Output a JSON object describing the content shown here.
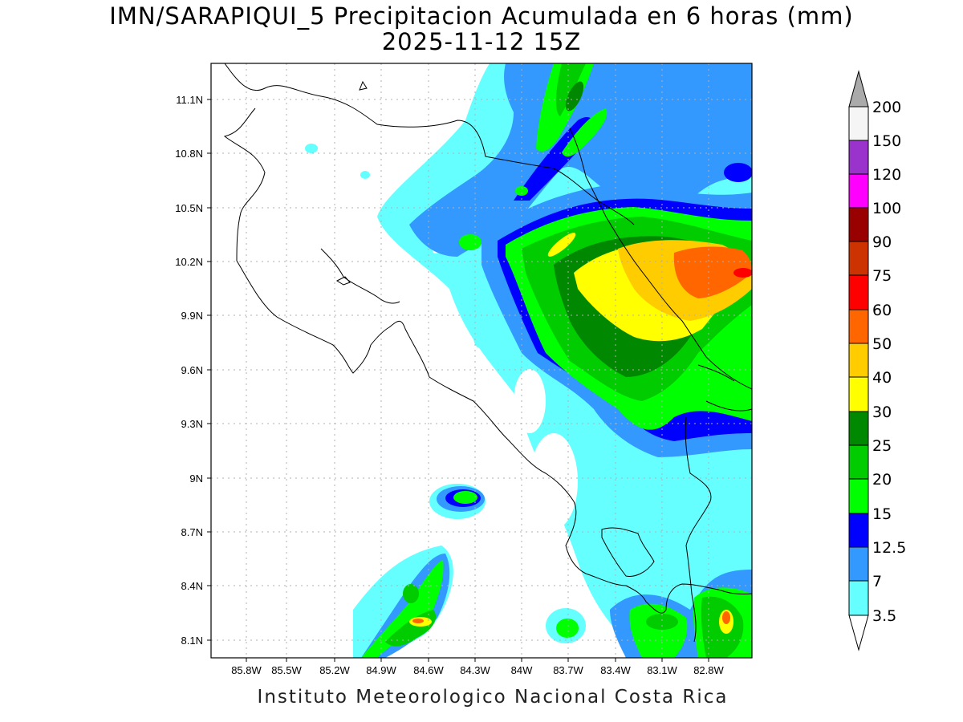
{
  "title": {
    "line1": "IMN/SARAPIQUI_5 Precipitacion Acumulada en 6 horas (mm)",
    "line2": "2025-11-12 15Z"
  },
  "credit": "Instituto Meteorologico Nacional Costa Rica",
  "map": {
    "lat_labels": [
      "11.1N",
      "10.8N",
      "10.5N",
      "10.2N",
      "9.9N",
      "9.6N",
      "9.3N",
      "9N",
      "8.7N",
      "8.4N",
      "8.1N"
    ],
    "lon_labels": [
      "85.8W",
      "85.5W",
      "85.2W",
      "84.9W",
      "84.6W",
      "84.3W",
      "84W",
      "83.7W",
      "83.4W",
      "83.1W",
      "82.8W"
    ],
    "lon_range": [
      -86.0,
      -82.55
    ],
    "lat_range": [
      8.0,
      11.3
    ],
    "grid": true,
    "fill_colors": {
      "c1": "#66ffff",
      "c2": "#3399ff",
      "c3": "#0000ff",
      "c4": "#00ff00",
      "c5": "#00cc00",
      "c6": "#008800",
      "c7": "#ffff00",
      "c8": "#ffcc00",
      "c9": "#ff6600",
      "c10": "#ff0000"
    }
  },
  "colorbar": {
    "levels": [
      "3.5",
      "7",
      "12.5",
      "15",
      "20",
      "25",
      "30",
      "40",
      "50",
      "60",
      "75",
      "90",
      "100",
      "120",
      "150",
      "200"
    ],
    "colors": [
      "#66ffff",
      "#3399ff",
      "#0000ff",
      "#00ff00",
      "#00cc00",
      "#008800",
      "#ffff00",
      "#ffcc00",
      "#ff6600",
      "#ff0000",
      "#cc3300",
      "#990000",
      "#ff00ff",
      "#9933cc",
      "#f5f5f5"
    ],
    "over_color": "#aaaaaa",
    "under_color": "#ffffff"
  }
}
